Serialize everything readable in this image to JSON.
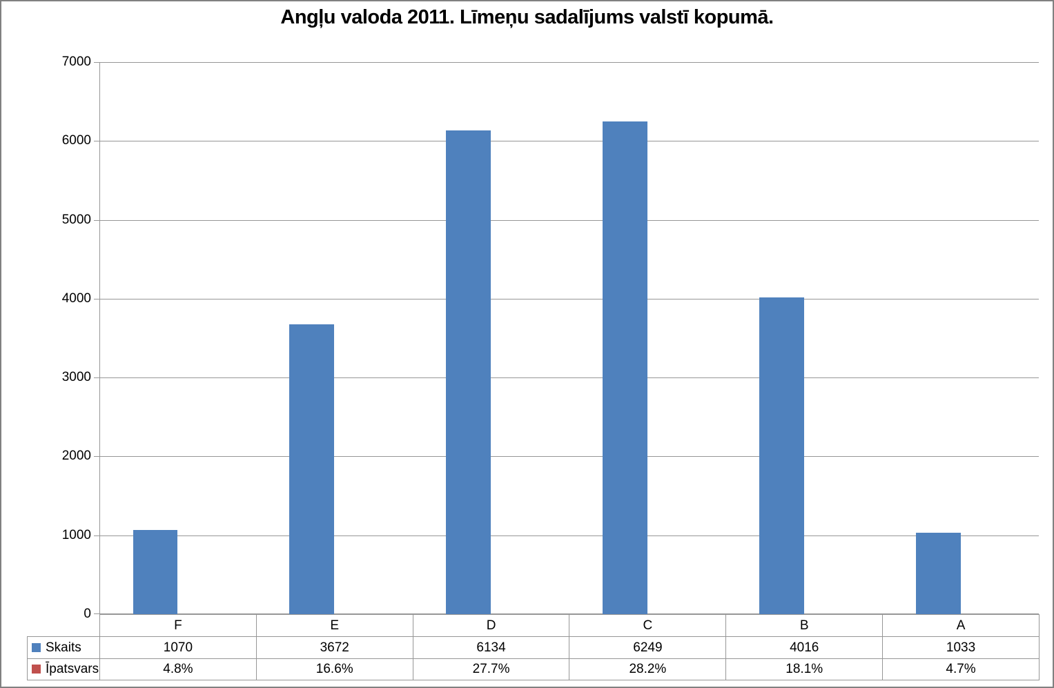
{
  "chart_data": {
    "type": "bar",
    "title": "Angļu valoda 2011. Līmeņu sadalījums valstī kopumā.",
    "categories": [
      "F",
      "E",
      "D",
      "C",
      "B",
      "A"
    ],
    "series": [
      {
        "name": "Skaits",
        "color": "#4F81BD",
        "plotted": true,
        "values": [
          1070,
          3672,
          6134,
          6249,
          4016,
          1033
        ],
        "display": [
          "1070",
          "3672",
          "6134",
          "6249",
          "4016",
          "1033"
        ]
      },
      {
        "name": "Īpatsvars",
        "color": "#C0504D",
        "plotted": false,
        "values": [
          4.8,
          16.6,
          27.7,
          28.2,
          18.1,
          4.7
        ],
        "display": [
          "4.8%",
          "16.6%",
          "27.7%",
          "28.2%",
          "18.1%",
          "4.7%"
        ]
      }
    ],
    "xlabel": "",
    "ylabel": "",
    "ylim": [
      0,
      7000
    ],
    "ytick_step": 1000,
    "yticks": [
      "0",
      "1000",
      "2000",
      "3000",
      "4000",
      "5000",
      "6000",
      "7000"
    ],
    "grid": true,
    "gap_ratio": 1.5,
    "legend_position": "table-row-headers",
    "colors": {
      "gridline": "#969696",
      "axis": "#969696",
      "table_border": "#969696",
      "frame_border": "#808080",
      "text": "#000000",
      "background": "#FFFFFF"
    }
  }
}
